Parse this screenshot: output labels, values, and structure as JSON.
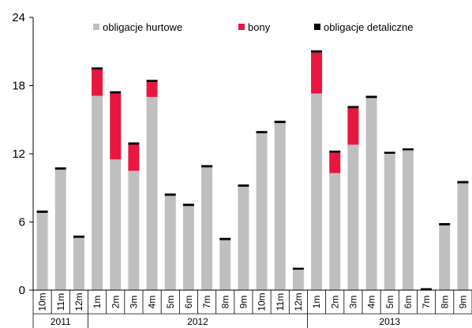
{
  "chart_data": {
    "type": "bar",
    "stacked": true,
    "categories": [
      "10m",
      "11m",
      "12m",
      "1m",
      "2m",
      "3m",
      "4m",
      "5m",
      "6m",
      "7m",
      "8m",
      "9m",
      "10m",
      "11m",
      "12m",
      "1m",
      "2m",
      "3m",
      "4m",
      "5m",
      "6m",
      "7m",
      "8m",
      "9m"
    ],
    "year_groups": [
      {
        "label": "2011",
        "start": 0,
        "end": 2
      },
      {
        "label": "2012",
        "start": 3,
        "end": 14
      },
      {
        "label": "2013",
        "start": 15,
        "end": 23
      }
    ],
    "series": [
      {
        "name": "obligacje hurtowe",
        "color": "#bfbfbf",
        "values": [
          6.8,
          10.6,
          4.6,
          17.1,
          11.5,
          10.5,
          17.0,
          8.3,
          7.4,
          10.8,
          4.4,
          9.1,
          13.8,
          14.7,
          1.8,
          17.3,
          10.3,
          12.8,
          16.9,
          12.0,
          12.3,
          0.0,
          5.7,
          9.4
        ]
      },
      {
        "name": "bony",
        "color": "#e8173f",
        "values": [
          0,
          0,
          0,
          2.3,
          5.8,
          2.3,
          1.3,
          0,
          0,
          0,
          0,
          0,
          0,
          0,
          0,
          3.6,
          1.8,
          3.2,
          0,
          0,
          0,
          0,
          0,
          0
        ]
      },
      {
        "name": "obligacje detaliczne",
        "color": "#000000",
        "values": [
          0.2,
          0.2,
          0.2,
          0.2,
          0.2,
          0.2,
          0.2,
          0.2,
          0.2,
          0.2,
          0.2,
          0.2,
          0.2,
          0.2,
          0.1,
          0.2,
          0.1,
          0.2,
          0.2,
          0.1,
          0.1,
          0.1,
          0.2,
          0.2
        ]
      }
    ],
    "yticks": [
      0,
      6,
      12,
      18,
      24
    ],
    "ylim": [
      0,
      24
    ],
    "grid": false,
    "legend_position": "top"
  }
}
